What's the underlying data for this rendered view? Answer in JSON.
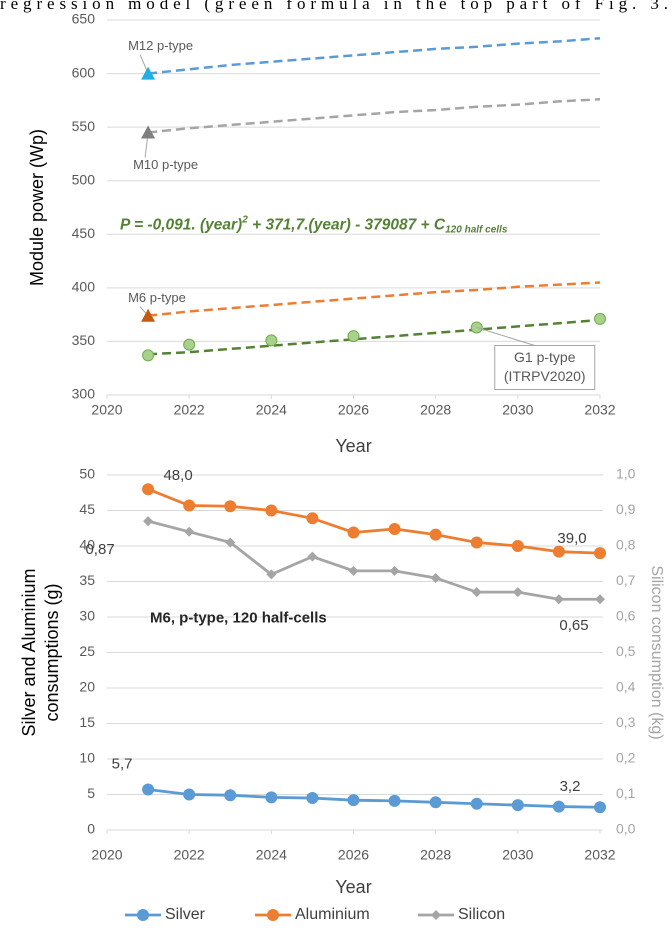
{
  "text_fragment": "regression model (green formula in the top part of Fig. 3.",
  "chart_data": [
    {
      "type": "line",
      "xlabel": "Year",
      "ylabel": "Module power (Wp)",
      "xlim": [
        2020,
        2032
      ],
      "xticks": [
        2020,
        2022,
        2024,
        2026,
        2028,
        2030,
        2032
      ],
      "ylim": [
        300,
        650
      ],
      "yticks": [
        300,
        350,
        400,
        450,
        500,
        550,
        600,
        650
      ],
      "grid": true,
      "x": [
        2021,
        2022,
        2023,
        2024,
        2025,
        2026,
        2027,
        2028,
        2029,
        2030,
        2031,
        2032
      ],
      "series": [
        {
          "name": "M12 p-type",
          "color": "#5b9bd5",
          "marker": "triangle",
          "marker_color": "#1fb0e8",
          "values": [
            600,
            604,
            608,
            611,
            614,
            617,
            620,
            623,
            625,
            628,
            630,
            633
          ]
        },
        {
          "name": "M10 p-type",
          "color": "#a5a5a5",
          "marker": "triangle",
          "marker_color": "#7f7f7f",
          "values": [
            545,
            549,
            552,
            555,
            558,
            561,
            564,
            566,
            569,
            571,
            574,
            576
          ]
        },
        {
          "name": "M6 p-type",
          "color": "#ed7d31",
          "marker": "triangle",
          "marker_color": "#c55a11",
          "values": [
            374,
            378,
            381,
            384,
            387,
            390,
            393,
            396,
            398,
            401,
            403,
            405
          ]
        },
        {
          "name": "G1 p-type",
          "note": "(ITRPV2020)",
          "color": "#548235",
          "marker": "circle",
          "marker_color": "#a9d18e",
          "values": [
            338,
            340,
            343,
            346,
            349,
            352,
            355,
            358,
            361,
            364,
            367,
            370
          ],
          "points_x": [
            2021,
            2022,
            2024,
            2026,
            2029,
            2032
          ],
          "points": [
            337,
            347,
            351,
            355,
            363,
            371
          ]
        }
      ],
      "annotation": {
        "main": "P = -0,091. (year)",
        "sup": "2",
        "mid": " + 371,7.(year) - 379087 + C",
        "sub": "120 half cells",
        "color": "#548235"
      }
    },
    {
      "type": "line",
      "xlabel": "Year",
      "ylabel": [
        "Silver and Aluminium",
        "consumptions (g)"
      ],
      "y2label": "Silicon consumption (kg)",
      "annotation": "M6, p-type, 120 half-cells",
      "xlim": [
        2020,
        2032
      ],
      "xticks": [
        2020,
        2022,
        2024,
        2026,
        2028,
        2030,
        2032
      ],
      "ylim": [
        0,
        50
      ],
      "yticks": [
        0,
        5,
        10,
        15,
        20,
        25,
        30,
        35,
        40,
        45,
        50
      ],
      "y2lim": [
        0,
        1
      ],
      "y2ticks": [
        {
          "value": 0,
          "label": "0,0"
        },
        {
          "value": 0.1,
          "label": "0,1"
        },
        {
          "value": 0.2,
          "label": "0,2"
        },
        {
          "value": 0.3,
          "label": "0,3"
        },
        {
          "value": 0.4,
          "label": "0,4"
        },
        {
          "value": 0.5,
          "label": "0,5"
        },
        {
          "value": 0.6,
          "label": "0,6"
        },
        {
          "value": 0.7,
          "label": "0,7"
        },
        {
          "value": 0.8,
          "label": "0,8"
        },
        {
          "value": 0.9,
          "label": "0,9"
        },
        {
          "value": 1,
          "label": "1,0"
        }
      ],
      "grid": true,
      "legend": "bottom",
      "x": [
        2021,
        2022,
        2023,
        2024,
        2025,
        2026,
        2027,
        2028,
        2029,
        2030,
        2031,
        2032
      ],
      "series": [
        {
          "name": "Silver",
          "color": "#5b9bd5",
          "marker": "circle",
          "values": [
            5.7,
            5.0,
            4.9,
            4.6,
            4.5,
            4.2,
            4.1,
            3.9,
            3.7,
            3.5,
            3.3,
            3.2
          ],
          "value_labels": [
            "5,7",
            null,
            null,
            null,
            null,
            null,
            null,
            null,
            null,
            null,
            null,
            "3,2"
          ]
        },
        {
          "name": "Aluminium",
          "color": "#ed7d31",
          "marker": "circle",
          "values": [
            48.0,
            45.7,
            45.6,
            45.0,
            43.9,
            41.9,
            42.4,
            41.6,
            40.5,
            40.0,
            39.2,
            39.0
          ],
          "value_labels": [
            "48,0",
            null,
            null,
            null,
            null,
            null,
            null,
            null,
            null,
            null,
            null,
            "39,0"
          ]
        },
        {
          "name": "Silicon",
          "color": "#a5a5a5",
          "marker": "diamond",
          "axis": "y2",
          "values": [
            0.87,
            0.84,
            0.81,
            0.72,
            0.77,
            0.73,
            0.73,
            0.71,
            0.67,
            0.67,
            0.65,
            0.65
          ],
          "value_labels": [
            "0,87",
            null,
            null,
            null,
            null,
            null,
            null,
            null,
            null,
            null,
            null,
            "0,65"
          ]
        }
      ]
    }
  ]
}
